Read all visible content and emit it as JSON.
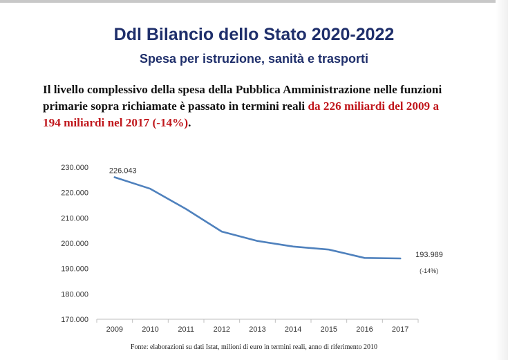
{
  "header": {
    "title": "Ddl Bilancio dello Stato 2020-2022",
    "subtitle": "Spesa per istruzione, sanità e trasporti"
  },
  "statement": {
    "part1": "Il livello complessivo della spesa della Pubblica Amministrazione nelle funzioni primarie sopra richiamate è passato in termini reali ",
    "highlight": "da 226 miliardi del 2009 a 194 miliardi nel 2017 (-14%)",
    "end": "."
  },
  "chart_data": {
    "type": "line",
    "categories": [
      "2009",
      "2010",
      "2011",
      "2012",
      "2013",
      "2014",
      "2015",
      "2016",
      "2017"
    ],
    "series": [
      {
        "values": [
          226043,
          221500,
          213500,
          204600,
          200900,
          198700,
          197500,
          194200,
          193989
        ],
        "color": "#4f81bd"
      }
    ],
    "y_ticks": [
      "170.000",
      "180.000",
      "190.000",
      "200.000",
      "210.000",
      "220.000",
      "230.000"
    ],
    "ylim": [
      170000,
      230000
    ],
    "grid": false,
    "annotations": {
      "first_value": "226.043",
      "last_value": "193.989",
      "last_change": "(-14%)"
    }
  },
  "footer": {
    "source": "Fonte: elaborazioni su dati Istat, milioni di euro in termini reali, anno di riferimento 2010"
  }
}
